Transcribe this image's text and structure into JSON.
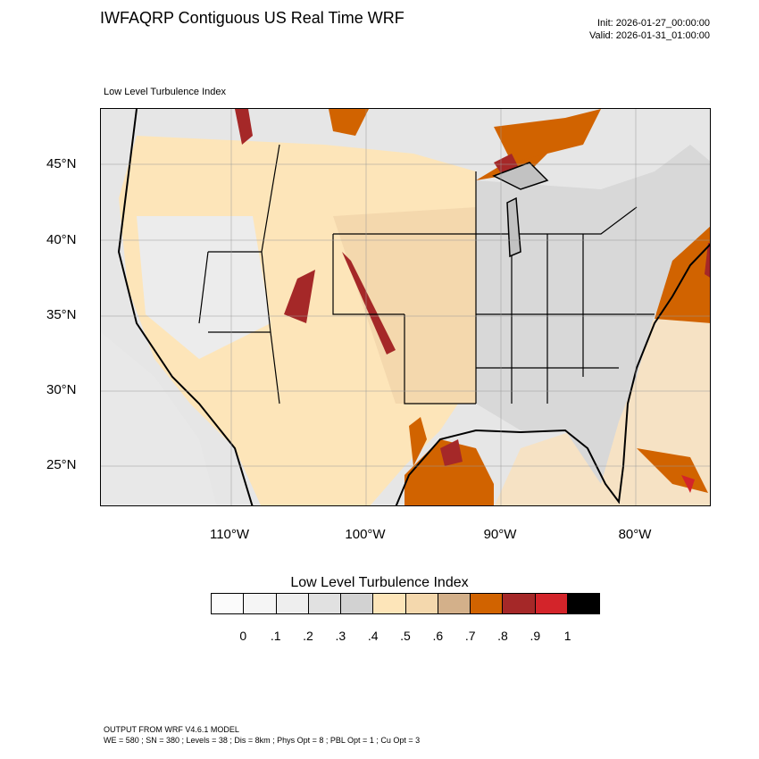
{
  "header": {
    "title": "IWFAQRP Contiguous US Real Time WRF",
    "init": "Init: 2026-01-27_00:00:00",
    "valid": "Valid: 2026-01-31_01:00:00"
  },
  "field_label": "Low Level Turbulence Index",
  "map": {
    "lat_labels": [
      "45°N",
      "40°N",
      "35°N",
      "30°N",
      "25°N"
    ],
    "lon_labels": [
      "110°W",
      "100°W",
      "90°W",
      "80°W"
    ]
  },
  "colorbar": {
    "title": "Low Level Turbulence Index",
    "colors": [
      "#fbfbfb",
      "#f5f5f5",
      "#eeeeee",
      "#e1e1e1",
      "#d2d2d2",
      "#fde5b9",
      "#f4d8ad",
      "#d3b08a",
      "#d16300",
      "#a52828",
      "#d3242a",
      "#000000"
    ],
    "ticks": [
      "0",
      ".1",
      ".2",
      ".3",
      ".4",
      ".5",
      ".6",
      ".7",
      ".8",
      ".9",
      "1"
    ]
  },
  "footer": {
    "line1": "OUTPUT FROM WRF V4.6.1 MODEL",
    "line2": "WE = 580 ; SN = 380 ; Levels = 38 ; Dis = 8km ; Phys Opt = 8 ; PBL Opt = 1 ; Cu Opt = 3"
  }
}
